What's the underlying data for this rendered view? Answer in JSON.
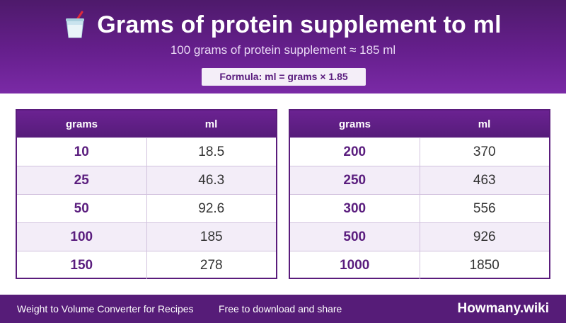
{
  "header": {
    "icon": "cup-with-straw-icon",
    "title": "Grams of protein supplement to ml",
    "subtitle": "100 grams of protein supplement ≈ 185 ml",
    "formula": "Formula: ml = grams × 1.85"
  },
  "columns": {
    "grams": "grams",
    "ml": "ml"
  },
  "tables": [
    {
      "rows": [
        {
          "grams": "10",
          "ml": "18.5"
        },
        {
          "grams": "25",
          "ml": "46.3"
        },
        {
          "grams": "50",
          "ml": "92.6"
        },
        {
          "grams": "100",
          "ml": "185"
        },
        {
          "grams": "150",
          "ml": "278"
        }
      ]
    },
    {
      "rows": [
        {
          "grams": "200",
          "ml": "370"
        },
        {
          "grams": "250",
          "ml": "463"
        },
        {
          "grams": "300",
          "ml": "556"
        },
        {
          "grams": "500",
          "ml": "926"
        },
        {
          "grams": "1000",
          "ml": "1850"
        }
      ]
    }
  ],
  "footer": {
    "left": "Weight to Volume Converter for Recipes",
    "middle": "Free to download and share",
    "brand": "Howmany.wiki"
  },
  "colors": {
    "header_purple": "#661f8d",
    "accent_purple": "#5a1d7e",
    "row_alt": "#f3edf8",
    "footer_purple": "#561c78"
  }
}
